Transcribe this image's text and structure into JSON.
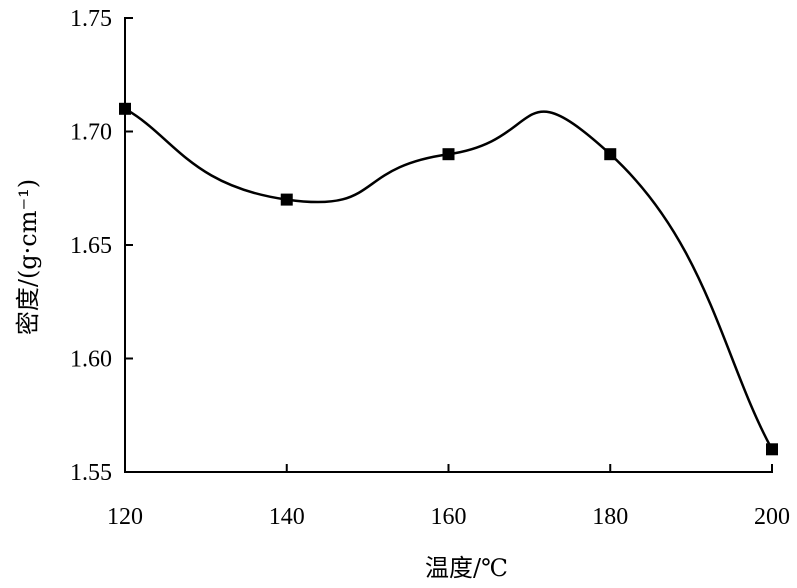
{
  "chart_data": {
    "type": "line",
    "title": "",
    "xlabel": "温度/℃",
    "ylabel": "密度/(g·cm⁻¹)",
    "x": [
      120,
      140,
      160,
      180,
      200
    ],
    "series": [
      {
        "values": [
          1.71,
          1.67,
          1.69,
          1.69,
          1.56
        ]
      }
    ],
    "xlim": [
      120,
      200
    ],
    "ylim": [
      1.55,
      1.75
    ],
    "xticks": [
      120,
      140,
      160,
      180,
      200
    ],
    "yticks": [
      1.55,
      1.6,
      1.65,
      1.7,
      1.75
    ],
    "x_tick_labels": [
      "120",
      "140",
      "160",
      "180",
      "200"
    ],
    "y_tick_labels": [
      "1.55",
      "1.60",
      "1.65",
      "1.70",
      "1.75"
    ],
    "smooth": true,
    "marker": "square",
    "grid": false,
    "legend": false,
    "line_color": "#000000",
    "marker_color": "#000000"
  }
}
